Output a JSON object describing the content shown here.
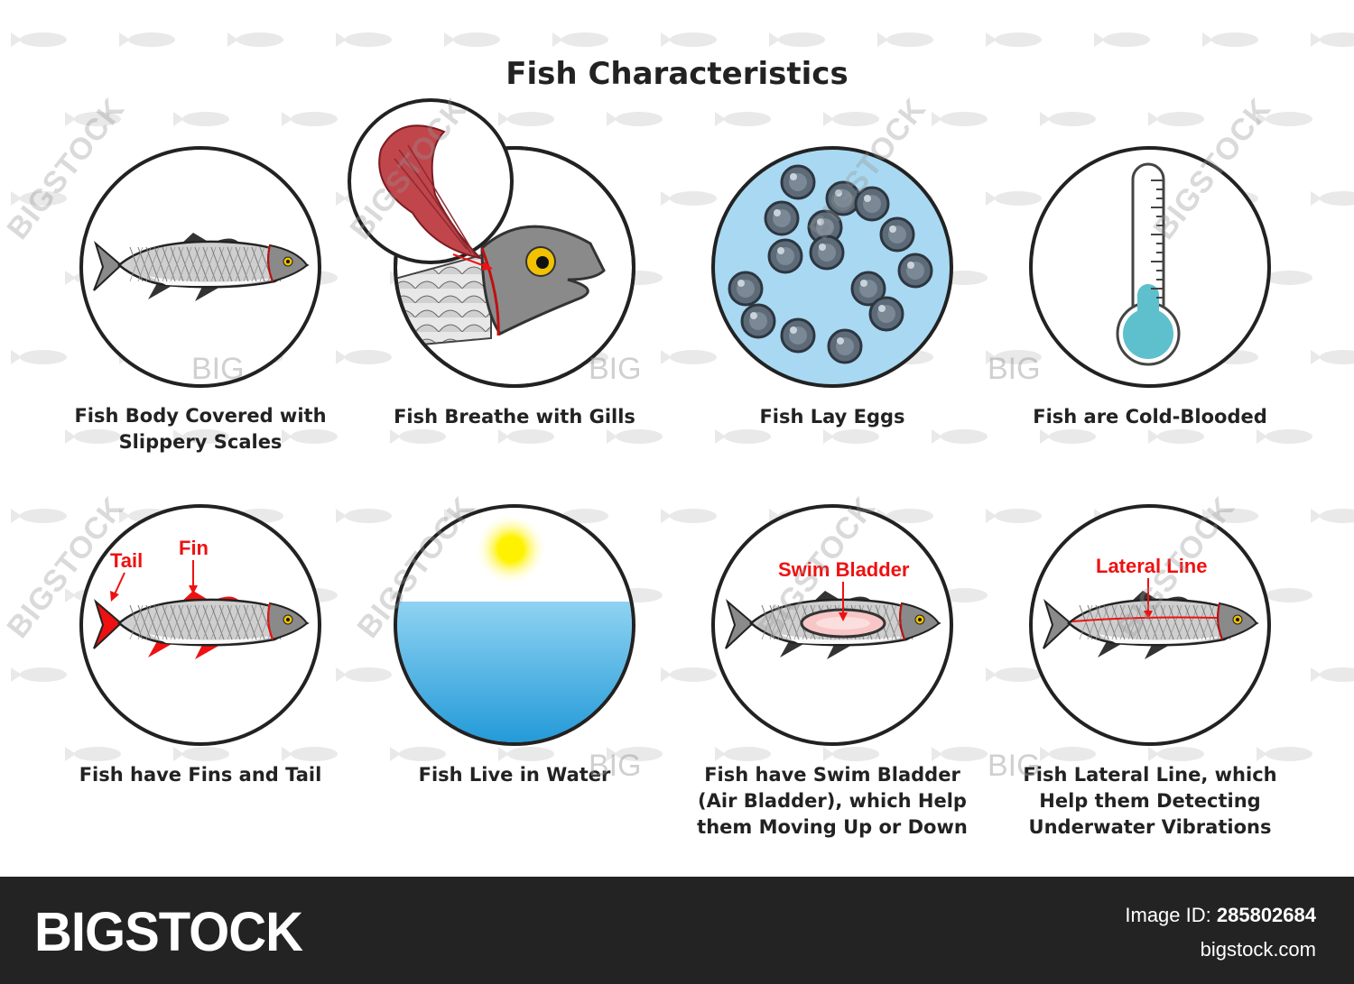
{
  "title": "Fish Characteristics",
  "cards": [
    {
      "caption": [
        "Fish Body Covered with",
        "Slippery Scales"
      ]
    },
    {
      "caption": [
        "Fish Breathe with Gills"
      ]
    },
    {
      "caption": [
        "Fish Lay Eggs"
      ]
    },
    {
      "caption": [
        "Fish are Cold-Blooded"
      ]
    },
    {
      "caption": [
        "Fish have Fins and Tail"
      ],
      "labels": {
        "tail": "Tail",
        "fin": "Fin"
      }
    },
    {
      "caption": [
        "Fish Live in Water"
      ]
    },
    {
      "caption": [
        "Fish have Swim Bladder",
        "(Air Bladder), which Help",
        "them Moving Up or Down"
      ],
      "labels": {
        "bladder": "Swim Bladder"
      }
    },
    {
      "caption": [
        "Fish Lateral Line,  which",
        "Help them Detecting",
        "Underwater Vibrations"
      ],
      "labels": {
        "lateral": "Lateral Line"
      }
    }
  ],
  "watermark": {
    "diagonal": "BIGSTOCK",
    "small": "BIG"
  },
  "footer": {
    "logo": "BIGSTOCK",
    "image_id_label": "Image ID:",
    "image_id": "285802684",
    "url": "bigstock.com"
  },
  "colors": {
    "annotation": "#e11",
    "water": "#2aa6e0",
    "eggs_bg": "#a9d9f2",
    "thermo_fluid": "#5ec0cc"
  }
}
